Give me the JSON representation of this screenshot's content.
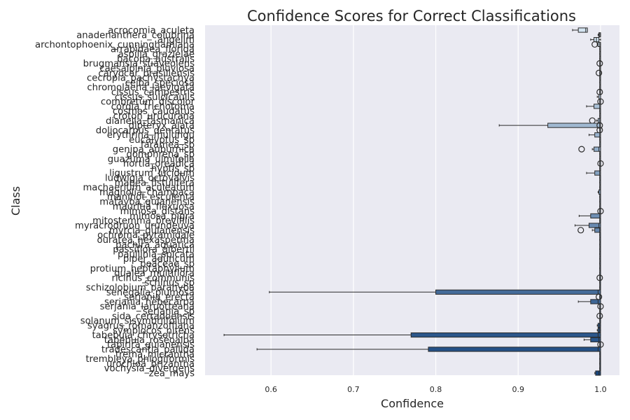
{
  "chart_data": {
    "type": "box",
    "orientation": "horizontal",
    "title": "Confidence Scores for Correct Classifications",
    "xlabel": "Confidence",
    "ylabel": "Class",
    "xlim": [
      0.52,
      1.023
    ],
    "xticks": [
      0.6,
      0.7,
      0.8,
      0.9,
      1.0
    ],
    "xtick_labels": [
      "0.6",
      "0.7",
      "0.8",
      "0.9",
      "1.0"
    ],
    "grid": true,
    "legend": "none",
    "palette": {
      "start": "#d4e4f1",
      "end": "#17457e"
    },
    "categories": [
      "acrocomia_aculeta",
      "anadenanthera_colubrina",
      "angelim",
      "archontophoenix_cunninghamiana",
      "arrabidaea_florida",
      "aspilia_grazielae",
      "bacopa_australis",
      "brugmansia_suaveolens",
      "caesalpinia_pluviosa",
      "caryocar_brasiliensis",
      "cecropia_pachystachya",
      "ceiba_speciosa",
      "chromolaena_laevigata",
      "cissus_campestris",
      "cissus_sulcicaulis",
      "combretum_discolor",
      "cordia_trichotoma",
      "cosmos_caudatus",
      "croton_urucurana",
      "dianella_tasmanica",
      "dipteryx_alata",
      "doliocarpus_dentatus",
      "erythrina_mulungu",
      "eucalyptus_sp",
      "faramea_sp",
      "genipa_auburnica",
      "gomphrena_sp",
      "guazuma_ulmifolia",
      "hortia_oreadica",
      "hyptis_sp",
      "ligustrum_lucidum",
      "ludwigia_octovalvis",
      "mabea_fistulifera",
      "machaerium_aculeatum",
      "magnolia_champaca",
      "manihot_esculenta",
      "matayba_guianensis",
      "mauritia_flexuosa",
      "mimosa_distans",
      "mimosa_pigra",
      "mitostemma_brevifilis",
      "myracrodruon_urundeuva",
      "myrcia_guianensis",
      "ochroma_pyramidale",
      "ouratea_hexasperma",
      "pachira_aquatica",
      "passiflora_gibertii",
      "paullinia_spicata",
      "piper_aduncum",
      "poaceae_sp",
      "protium_heptaphyllum",
      "qualea_multiflora",
      "ricinus_communis",
      "schinus_sp",
      "schizolobium_parahyba",
      "senegalia_plumosa",
      "serjania_erecta",
      "serjania_hebecarpa",
      "serjania_laruotteana",
      "serjania_sp",
      "sida_cerradoensis",
      "solanum_sisymbriifolium",
      "syagrus_romanzoffiana",
      "symplocos_nitens",
      "tabebuia_chrysotricha",
      "tabebuia_roseoalba",
      "tapirira_guianensis",
      "tradescantia_pallida",
      "trema_micrantha",
      "trembleya_phlogiformis",
      "urochloa_brizantha",
      "vochysia_divergens",
      "zea_mays"
    ],
    "boxes": [
      {
        "q1": 0.973,
        "median": 0.982,
        "q3": 0.984,
        "whislo": 0.966,
        "whishi": 0.984
      },
      {
        "q1": 0.998,
        "median": 0.999,
        "q3": 1.0,
        "whislo": 0.997,
        "whishi": 1.0
      },
      {
        "q1": 0.992,
        "median": 0.995,
        "q3": 0.998,
        "whislo": 0.988,
        "whishi": 1.0
      },
      {
        "q1": 0.997,
        "median": 0.999,
        "q3": 1.0,
        "whislo": 0.996,
        "whishi": 1.0,
        "fliers": [
          0.993
        ]
      },
      {
        "q1": 0.999,
        "median": 1.0,
        "q3": 1.0,
        "whislo": 0.999,
        "whishi": 1.0
      },
      {
        "q1": 0.999,
        "median": 1.0,
        "q3": 1.0,
        "whislo": 0.999,
        "whishi": 1.0
      },
      {
        "q1": 0.999,
        "median": 1.0,
        "q3": 1.0,
        "whislo": 0.999,
        "whishi": 1.0
      },
      {
        "q1": 0.999,
        "median": 1.0,
        "q3": 1.0,
        "whislo": 0.999,
        "whishi": 1.0,
        "fliers": [
          0.999
        ]
      },
      {
        "q1": 0.999,
        "median": 1.0,
        "q3": 1.0,
        "whislo": 0.999,
        "whishi": 1.0
      },
      {
        "q1": 0.999,
        "median": 1.0,
        "q3": 1.0,
        "whislo": 0.999,
        "whishi": 1.0,
        "fliers": [
          0.998
        ]
      },
      {
        "q1": 0.999,
        "median": 1.0,
        "q3": 1.0,
        "whislo": 0.999,
        "whishi": 1.0
      },
      {
        "q1": 0.999,
        "median": 1.0,
        "q3": 1.0,
        "whislo": 0.999,
        "whishi": 1.0
      },
      {
        "q1": 0.999,
        "median": 1.0,
        "q3": 1.0,
        "whislo": 0.999,
        "whishi": 1.0
      },
      {
        "q1": 0.999,
        "median": 1.0,
        "q3": 1.0,
        "whislo": 0.999,
        "whishi": 1.0,
        "fliers": [
          0.999
        ]
      },
      {
        "q1": 0.998,
        "median": 1.0,
        "q3": 1.0,
        "whislo": 0.996,
        "whishi": 1.0
      },
      {
        "q1": 0.999,
        "median": 1.0,
        "q3": 1.0,
        "whislo": 0.999,
        "whishi": 1.0,
        "fliers": [
          1.0
        ]
      },
      {
        "q1": 0.992,
        "median": 0.999,
        "q3": 1.0,
        "whislo": 0.983,
        "whishi": 1.0
      },
      {
        "q1": 0.999,
        "median": 1.0,
        "q3": 1.0,
        "whislo": 0.999,
        "whishi": 1.0
      },
      {
        "q1": 0.999,
        "median": 1.0,
        "q3": 1.0,
        "whislo": 0.999,
        "whishi": 1.0
      },
      {
        "q1": 0.997,
        "median": 0.999,
        "q3": 1.0,
        "whislo": 0.995,
        "whishi": 1.0,
        "fliers": [
          0.99
        ]
      },
      {
        "q1": 0.936,
        "median": 0.999,
        "q3": 1.0,
        "whislo": 0.877,
        "whishi": 1.0,
        "fliers": [
          0.999
        ]
      },
      {
        "q1": 0.999,
        "median": 1.0,
        "q3": 1.0,
        "whislo": 0.999,
        "whishi": 1.0,
        "fliers": [
          0.999
        ]
      },
      {
        "q1": 0.993,
        "median": 0.999,
        "q3": 1.0,
        "whislo": 0.986,
        "whishi": 1.0
      },
      {
        "q1": 0.999,
        "median": 1.0,
        "q3": 1.0,
        "whislo": 0.999,
        "whishi": 1.0
      },
      {
        "q1": 0.999,
        "median": 1.0,
        "q3": 1.0,
        "whislo": 0.999,
        "whishi": 1.0
      },
      {
        "q1": 0.992,
        "median": 0.998,
        "q3": 1.0,
        "whislo": 0.99,
        "whishi": 1.0,
        "fliers": [
          0.977
        ]
      },
      {
        "q1": 0.999,
        "median": 1.0,
        "q3": 1.0,
        "whislo": 0.999,
        "whishi": 1.0
      },
      {
        "q1": 0.999,
        "median": 1.0,
        "q3": 1.0,
        "whislo": 0.999,
        "whishi": 1.0
      },
      {
        "q1": 0.999,
        "median": 1.0,
        "q3": 1.0,
        "whislo": 0.999,
        "whishi": 1.0,
        "fliers": [
          1.0
        ]
      },
      {
        "q1": 0.999,
        "median": 1.0,
        "q3": 1.0,
        "whislo": 0.999,
        "whishi": 1.0
      },
      {
        "q1": 0.993,
        "median": 0.999,
        "q3": 1.0,
        "whislo": 0.983,
        "whishi": 1.0
      },
      {
        "q1": 0.999,
        "median": 1.0,
        "q3": 1.0,
        "whislo": 0.999,
        "whishi": 1.0
      },
      {
        "q1": 0.999,
        "median": 1.0,
        "q3": 1.0,
        "whislo": 0.999,
        "whishi": 1.0
      },
      {
        "q1": 0.999,
        "median": 1.0,
        "q3": 1.0,
        "whislo": 0.999,
        "whishi": 1.0
      },
      {
        "q1": 0.998,
        "median": 1.0,
        "q3": 1.0,
        "whislo": 0.997,
        "whishi": 1.0
      },
      {
        "q1": 0.999,
        "median": 1.0,
        "q3": 1.0,
        "whislo": 0.999,
        "whishi": 1.0
      },
      {
        "q1": 0.999,
        "median": 1.0,
        "q3": 1.0,
        "whislo": 0.999,
        "whishi": 1.0
      },
      {
        "q1": 0.999,
        "median": 1.0,
        "q3": 1.0,
        "whislo": 0.999,
        "whishi": 1.0
      },
      {
        "q1": 0.999,
        "median": 1.0,
        "q3": 1.0,
        "whislo": 0.999,
        "whishi": 1.0,
        "fliers": [
          1.0
        ]
      },
      {
        "q1": 0.988,
        "median": 0.999,
        "q3": 1.0,
        "whislo": 0.974,
        "whishi": 1.0
      },
      {
        "q1": 0.999,
        "median": 1.0,
        "q3": 1.0,
        "whislo": 0.999,
        "whishi": 1.0
      },
      {
        "q1": 0.986,
        "median": 0.998,
        "q3": 1.0,
        "whislo": 0.969,
        "whishi": 1.0
      },
      {
        "q1": 0.993,
        "median": 0.999,
        "q3": 1.0,
        "whislo": 0.99,
        "whishi": 1.0,
        "fliers": [
          0.976
        ]
      },
      {
        "q1": 0.999,
        "median": 1.0,
        "q3": 1.0,
        "whislo": 0.999,
        "whishi": 1.0
      },
      {
        "q1": 0.999,
        "median": 1.0,
        "q3": 1.0,
        "whislo": 0.999,
        "whishi": 1.0
      },
      {
        "q1": 0.999,
        "median": 1.0,
        "q3": 1.0,
        "whislo": 0.999,
        "whishi": 1.0
      },
      {
        "q1": 0.999,
        "median": 1.0,
        "q3": 1.0,
        "whislo": 0.999,
        "whishi": 1.0
      },
      {
        "q1": 0.999,
        "median": 1.0,
        "q3": 1.0,
        "whislo": 0.999,
        "whishi": 1.0
      },
      {
        "q1": 0.999,
        "median": 1.0,
        "q3": 1.0,
        "whislo": 0.999,
        "whishi": 1.0
      },
      {
        "q1": 0.999,
        "median": 1.0,
        "q3": 1.0,
        "whislo": 0.999,
        "whishi": 1.0
      },
      {
        "q1": 0.999,
        "median": 1.0,
        "q3": 1.0,
        "whislo": 0.999,
        "whishi": 1.0
      },
      {
        "q1": 0.999,
        "median": 1.0,
        "q3": 1.0,
        "whislo": 0.999,
        "whishi": 1.0
      },
      {
        "q1": 0.999,
        "median": 1.0,
        "q3": 1.0,
        "whislo": 0.999,
        "whishi": 1.0,
        "fliers": [
          0.999
        ]
      },
      {
        "q1": 0.999,
        "median": 1.0,
        "q3": 1.0,
        "whislo": 0.999,
        "whishi": 1.0
      },
      {
        "q1": 0.999,
        "median": 1.0,
        "q3": 1.0,
        "whislo": 0.999,
        "whishi": 1.0
      },
      {
        "q1": 0.8,
        "median": 0.997,
        "q3": 1.0,
        "whislo": 0.598,
        "whishi": 1.0
      },
      {
        "q1": 0.999,
        "median": 1.0,
        "q3": 1.0,
        "whislo": 0.999,
        "whishi": 1.0,
        "fliers": [
          0.998
        ]
      },
      {
        "q1": 0.988,
        "median": 0.997,
        "q3": 1.0,
        "whislo": 0.973,
        "whishi": 1.0
      },
      {
        "q1": 0.999,
        "median": 1.0,
        "q3": 1.0,
        "whislo": 0.999,
        "whishi": 1.0,
        "fliers": [
          1.0
        ]
      },
      {
        "q1": 0.999,
        "median": 1.0,
        "q3": 1.0,
        "whislo": 0.999,
        "whishi": 1.0
      },
      {
        "q1": 0.999,
        "median": 1.0,
        "q3": 1.0,
        "whislo": 0.999,
        "whishi": 1.0,
        "fliers": [
          0.999
        ]
      },
      {
        "q1": 0.999,
        "median": 1.0,
        "q3": 1.0,
        "whislo": 0.999,
        "whishi": 1.0
      },
      {
        "q1": 0.997,
        "median": 0.999,
        "q3": 1.0,
        "whislo": 0.996,
        "whishi": 1.0
      },
      {
        "q1": 0.997,
        "median": 0.999,
        "q3": 1.0,
        "whislo": 0.996,
        "whishi": 1.0
      },
      {
        "q1": 0.77,
        "median": 0.997,
        "q3": 1.0,
        "whislo": 0.543,
        "whishi": 1.0
      },
      {
        "q1": 0.988,
        "median": 0.998,
        "q3": 1.0,
        "whislo": 0.98,
        "whishi": 1.0
      },
      {
        "q1": 0.999,
        "median": 1.0,
        "q3": 1.0,
        "whislo": 0.999,
        "whishi": 1.0,
        "fliers": [
          1.0
        ]
      },
      {
        "q1": 0.791,
        "median": 0.997,
        "q3": 1.0,
        "whislo": 0.583,
        "whishi": 1.0
      },
      {
        "q1": 0.999,
        "median": 1.0,
        "q3": 1.0,
        "whislo": 0.999,
        "whishi": 1.0
      },
      {
        "q1": 0.999,
        "median": 1.0,
        "q3": 1.0,
        "whislo": 0.999,
        "whishi": 1.0
      },
      {
        "q1": 0.999,
        "median": 1.0,
        "q3": 1.0,
        "whislo": 0.999,
        "whishi": 1.0
      },
      {
        "q1": 0.999,
        "median": 1.0,
        "q3": 1.0,
        "whislo": 0.999,
        "whishi": 1.0
      },
      {
        "q1": 0.994,
        "median": 0.998,
        "q3": 1.0,
        "whislo": 0.993,
        "whishi": 1.0
      }
    ]
  }
}
